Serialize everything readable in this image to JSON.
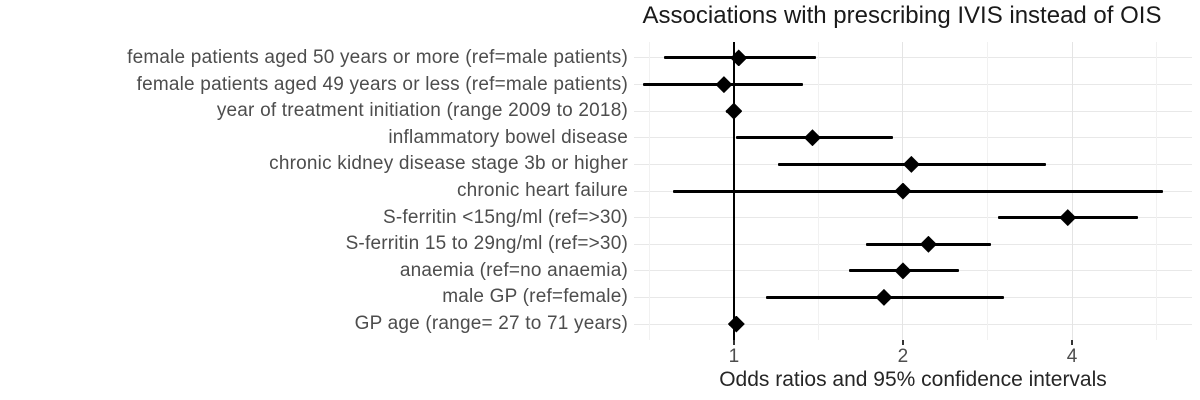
{
  "chart_data": {
    "type": "scatter",
    "variant": "forest-plot",
    "title": "Associations with prescribing IVIS instead of OIS",
    "xlabel": "Odds ratios and 95% confidence intervals",
    "x_scale": "log2",
    "xlim": [
      0.664,
      6.54
    ],
    "x_ticks": [
      1,
      2,
      4
    ],
    "x_minor_gridlines": [
      0.707,
      1.414,
      2.828,
      5.657
    ],
    "reference_line_x": 1,
    "grid": true,
    "rows": [
      {
        "label": "female patients aged 50 years or more (ref=male patients)",
        "or": 1.02,
        "ci_low": 0.75,
        "ci_high": 1.4
      },
      {
        "label": "female patients aged 49 years or less (ref=male patients)",
        "or": 0.96,
        "ci_low": 0.69,
        "ci_high": 1.33
      },
      {
        "label": "year of treatment initiation (range 2009 to 2018)",
        "or": 1.0,
        "ci_low": 0.97,
        "ci_high": 1.03
      },
      {
        "label": "inflammatory bowel disease",
        "or": 1.38,
        "ci_low": 1.01,
        "ci_high": 1.92
      },
      {
        "label": "chronic kidney disease stage 3b or higher",
        "or": 2.07,
        "ci_low": 1.2,
        "ci_high": 3.6
      },
      {
        "label": "chronic heart failure",
        "or": 2.0,
        "ci_low": 0.78,
        "ci_high": 5.8
      },
      {
        "label": "S-ferritin <15ng/ml (ref=>30)",
        "or": 3.93,
        "ci_low": 2.95,
        "ci_high": 5.25
      },
      {
        "label": "S-ferritin 15 to 29ng/ml (ref=>30)",
        "or": 2.22,
        "ci_low": 1.72,
        "ci_high": 2.87
      },
      {
        "label": "anaemia (ref=no anaemia)",
        "or": 2.0,
        "ci_low": 1.6,
        "ci_high": 2.52
      },
      {
        "label": "male GP (ref=female)",
        "or": 1.85,
        "ci_low": 1.14,
        "ci_high": 3.02
      },
      {
        "label": "GP age (range= 27 to 71 years)",
        "or": 1.01,
        "ci_low": 0.98,
        "ci_high": 1.04
      }
    ],
    "colors": {
      "marker": "#000000",
      "ci_line": "#000000",
      "reference_line": "#000000",
      "grid_major": "#e4e4e4",
      "grid_minor": "#f1f1f1",
      "axis_text": "#4d4d4d",
      "title_text": "#1a1a1a",
      "background": "#ffffff"
    }
  }
}
